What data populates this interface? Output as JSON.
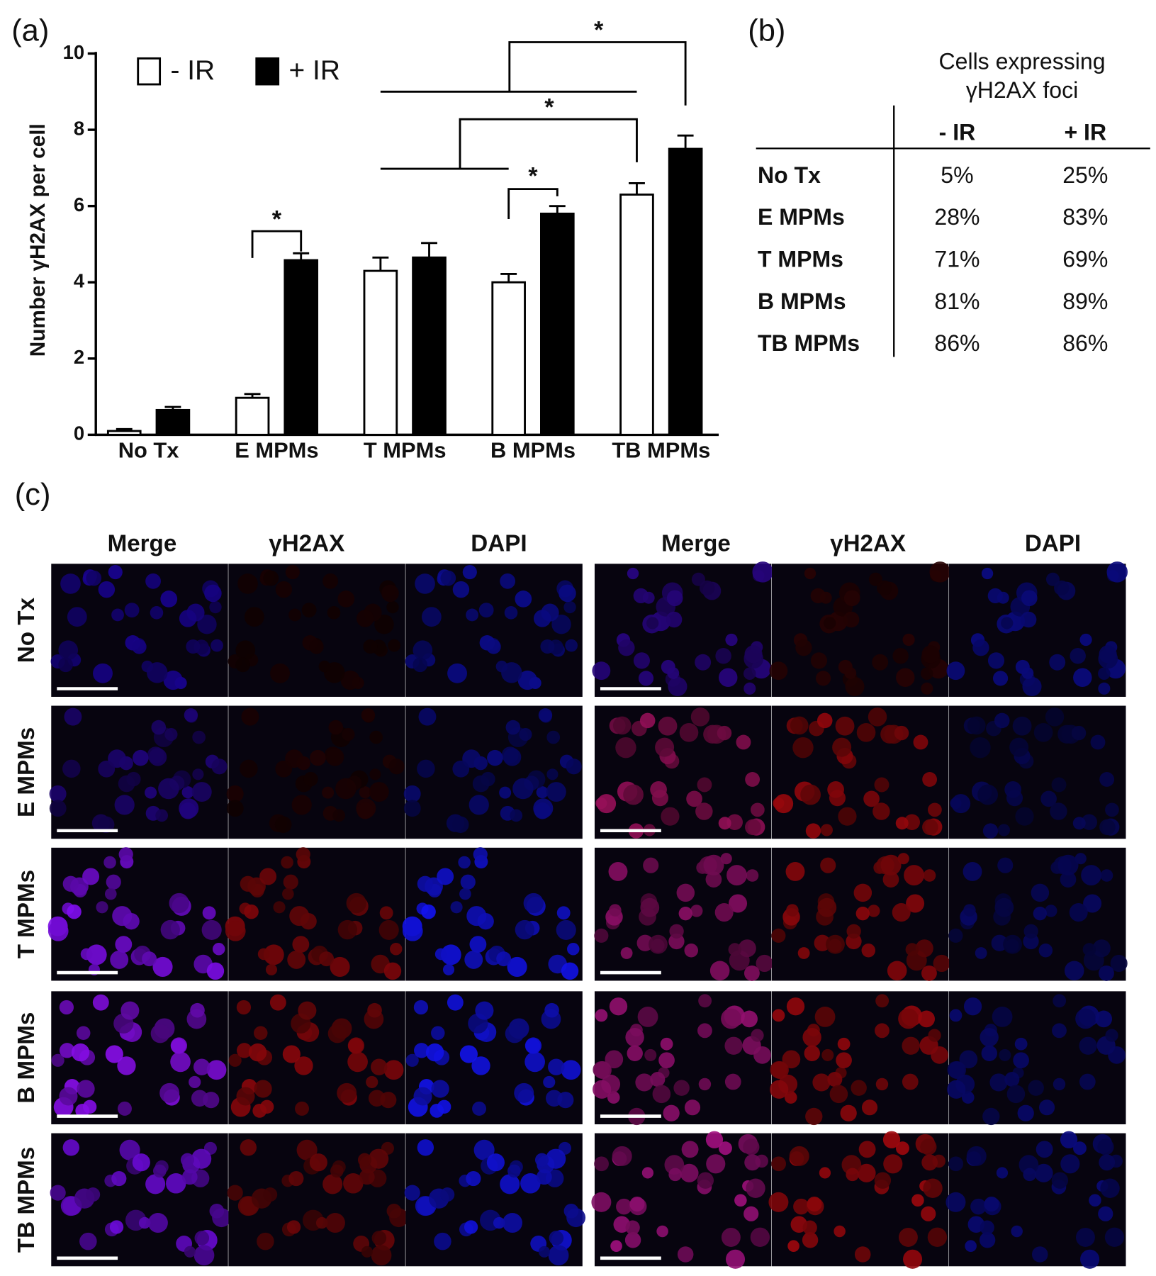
{
  "chart_data": {
    "type": "bar",
    "panel_label": "(a)",
    "y_label": "Number γH2AX per cell",
    "categories": [
      "No Tx",
      "E MPMs",
      "T MPMs",
      "B MPMs",
      "TB MPMs"
    ],
    "series": [
      {
        "name": "- IR",
        "color": "#ffffff",
        "values": [
          0.1,
          0.97,
          4.3,
          4.0,
          6.3
        ],
        "errors": [
          0.05,
          0.1,
          0.35,
          0.22,
          0.3
        ]
      },
      {
        "name": "+ IR",
        "color": "#000000",
        "values": [
          0.65,
          4.58,
          4.65,
          5.8,
          7.5
        ],
        "errors": [
          0.08,
          0.18,
          0.38,
          0.2,
          0.35
        ]
      }
    ],
    "ylim": [
      0,
      10
    ],
    "yticks": [
      0,
      2,
      4,
      6,
      8,
      10
    ],
    "annotations": [
      "*",
      "*",
      "*",
      "*"
    ]
  },
  "table": {
    "panel_label": "(b)",
    "title": [
      "Cells expressing",
      "γH2AX foci"
    ],
    "columns": [
      "- IR",
      "+ IR"
    ],
    "rows": [
      [
        "No Tx",
        "5%",
        "25%"
      ],
      [
        "E MPMs",
        "28%",
        "83%"
      ],
      [
        "T MPMs",
        "71%",
        "69%"
      ],
      [
        "B MPMs",
        "81%",
        "89%"
      ],
      [
        "TB MPMs",
        "86%",
        "86%"
      ]
    ]
  },
  "images": {
    "panel_label": "(c)",
    "column_labels": [
      "Merge",
      "γH2AX",
      "DAPI",
      "Merge",
      "γH2AX",
      "DAPI"
    ],
    "row_labels": [
      "No Tx",
      "E MPMs",
      "T MPMs",
      "B MPMs",
      "TB MPMs"
    ]
  }
}
